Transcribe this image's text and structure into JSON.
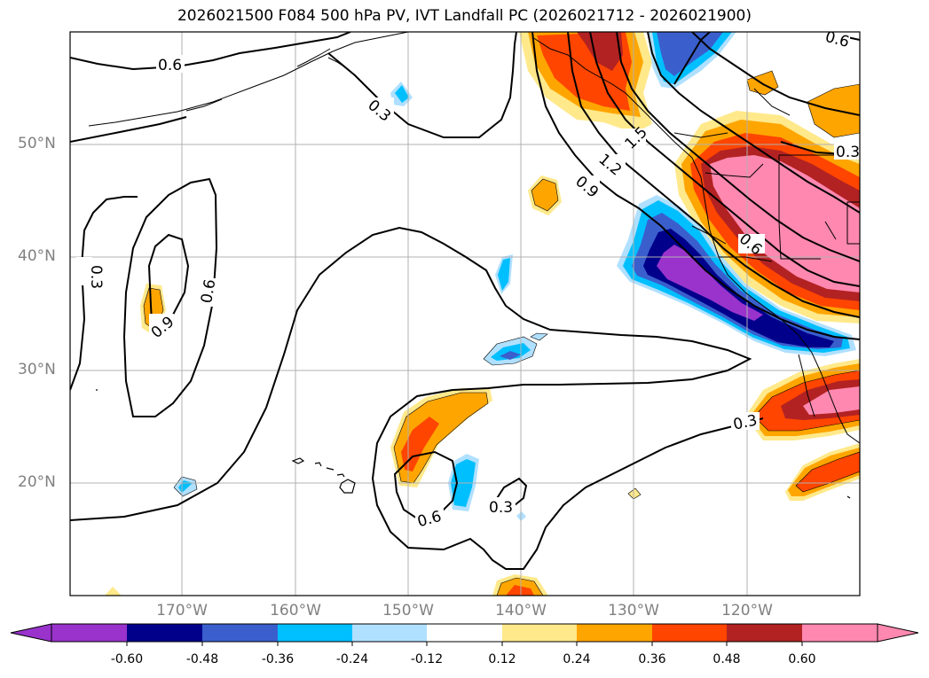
{
  "title": "2026021500 F084 500 hPa PV, IVT Landfall PC (2026021712 - 2026021900)",
  "lat_labels": [
    "50°N",
    "40°N",
    "30°N",
    "20°N"
  ],
  "lon_labels": [
    "170°W",
    "160°W",
    "150°W",
    "140°W",
    "130°W",
    "120°W"
  ],
  "contour_labels": [
    "0.6",
    "0.3",
    "0.3",
    "0.6",
    "0.9",
    "0.3",
    "0.6",
    "0.3",
    "1.5",
    "1.2",
    "0.9",
    "0.6",
    "0.3",
    "0.6"
  ],
  "colorbar": {
    "tick_labels": [
      "-0.60",
      "-0.48",
      "-0.36",
      "-0.24",
      "-0.12",
      "0.12",
      "0.24",
      "0.36",
      "0.48",
      "0.60"
    ],
    "colors": [
      "#9933cc",
      "#00008b",
      "#3a5fcd",
      "#00bfff",
      "#b0e0ff",
      "#ffffff",
      "#ffe98a",
      "#ffa500",
      "#ff4500",
      "#b22222",
      "#ff88b0"
    ]
  },
  "fill_colors": {
    "light_yellow": "#ffe98a",
    "orange": "#ffa500",
    "red_orange": "#ff4500",
    "dark_red": "#b22222",
    "pink": "#ff88b0",
    "light_blue": "#b0e0ff",
    "sky_blue": "#00bfff",
    "blue": "#3a5fcd",
    "navy": "#00008b",
    "purple": "#9933cc"
  }
}
